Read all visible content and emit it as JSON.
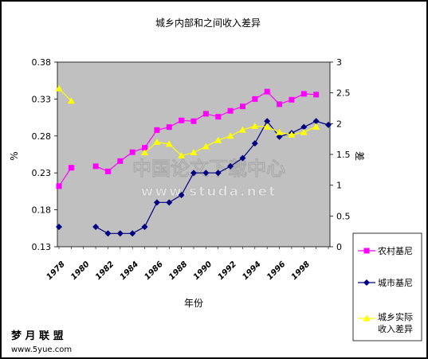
{
  "chart_data": {
    "type": "line",
    "title": "城乡内部和之间收入差异",
    "xlabel": "年份",
    "ylabel_left": "%",
    "ylabel_right": "差",
    "x_ticks": [
      "1978",
      "1980",
      "1982",
      "1984",
      "1986",
      "1988",
      "1990",
      "1992",
      "1994",
      "1996",
      "1998"
    ],
    "ylim_left": [
      0.13,
      0.38
    ],
    "y_ticks_left": [
      "0.13",
      "0.18",
      "0.23",
      "0.28",
      "0.33",
      "0.38"
    ],
    "ylim_right": [
      0,
      3
    ],
    "y_ticks_right": [
      "0",
      "0.5",
      "1",
      "1.5",
      "2",
      "2.5",
      "3"
    ],
    "series": [
      {
        "name": "农村基尼",
        "axis": "left",
        "color": "#ff00ff",
        "marker": "square",
        "points": [
          [
            1978,
            0.212
          ],
          [
            1979,
            0.237
          ],
          [
            1981,
            0.239
          ],
          [
            1982,
            0.232
          ],
          [
            1983,
            0.246
          ],
          [
            1984,
            0.258
          ],
          [
            1985,
            0.264
          ],
          [
            1986,
            0.288
          ],
          [
            1987,
            0.292
          ],
          [
            1988,
            0.301
          ],
          [
            1989,
            0.3
          ],
          [
            1990,
            0.31
          ],
          [
            1991,
            0.306
          ],
          [
            1992,
            0.314
          ],
          [
            1993,
            0.32
          ],
          [
            1994,
            0.33
          ],
          [
            1995,
            0.34
          ],
          [
            1996,
            0.323
          ],
          [
            1997,
            0.329
          ],
          [
            1998,
            0.337
          ],
          [
            1999,
            0.336
          ]
        ]
      },
      {
        "name": "城市基尼",
        "axis": "left",
        "color": "#000080",
        "marker": "diamond",
        "points": [
          [
            1978,
            0.157
          ],
          [
            1981,
            0.157
          ],
          [
            1982,
            0.148
          ],
          [
            1983,
            0.148
          ],
          [
            1984,
            0.148
          ],
          [
            1985,
            0.157
          ],
          [
            1986,
            0.19
          ],
          [
            1987,
            0.19
          ],
          [
            1988,
            0.2
          ],
          [
            1989,
            0.23
          ],
          [
            1990,
            0.23
          ],
          [
            1991,
            0.23
          ],
          [
            1992,
            0.239
          ],
          [
            1993,
            0.25
          ],
          [
            1994,
            0.27
          ],
          [
            1995,
            0.3
          ],
          [
            1996,
            0.279
          ],
          [
            1997,
            0.284
          ],
          [
            1998,
            0.292
          ],
          [
            1999,
            0.3
          ],
          [
            2000,
            0.295
          ]
        ]
      },
      {
        "name": "城乡实际收入差异",
        "axis": "right",
        "color": "#ffff00",
        "marker": "triangle",
        "points": [
          [
            1978,
            2.57
          ],
          [
            1979,
            2.37
          ],
          [
            1985,
            1.53
          ],
          [
            1986,
            1.7
          ],
          [
            1987,
            1.67
          ],
          [
            1988,
            1.48
          ],
          [
            1989,
            1.53
          ],
          [
            1990,
            1.63
          ],
          [
            1991,
            1.73
          ],
          [
            1992,
            1.8
          ],
          [
            1993,
            1.9
          ],
          [
            1994,
            1.96
          ],
          [
            1995,
            1.95
          ],
          [
            1996,
            1.86
          ],
          [
            1997,
            1.82
          ],
          [
            1998,
            1.86
          ],
          [
            1999,
            1.95
          ]
        ]
      }
    ],
    "legend_position": "right",
    "grid": false,
    "plot_background": "#c0c0c0"
  },
  "watermarks": {
    "center_cn": "中国论文下载中心",
    "center_url": "www.studa.net",
    "bottom_left_cn": "梦 月 联 盟",
    "bottom_left_url": "www.5yue.com"
  }
}
